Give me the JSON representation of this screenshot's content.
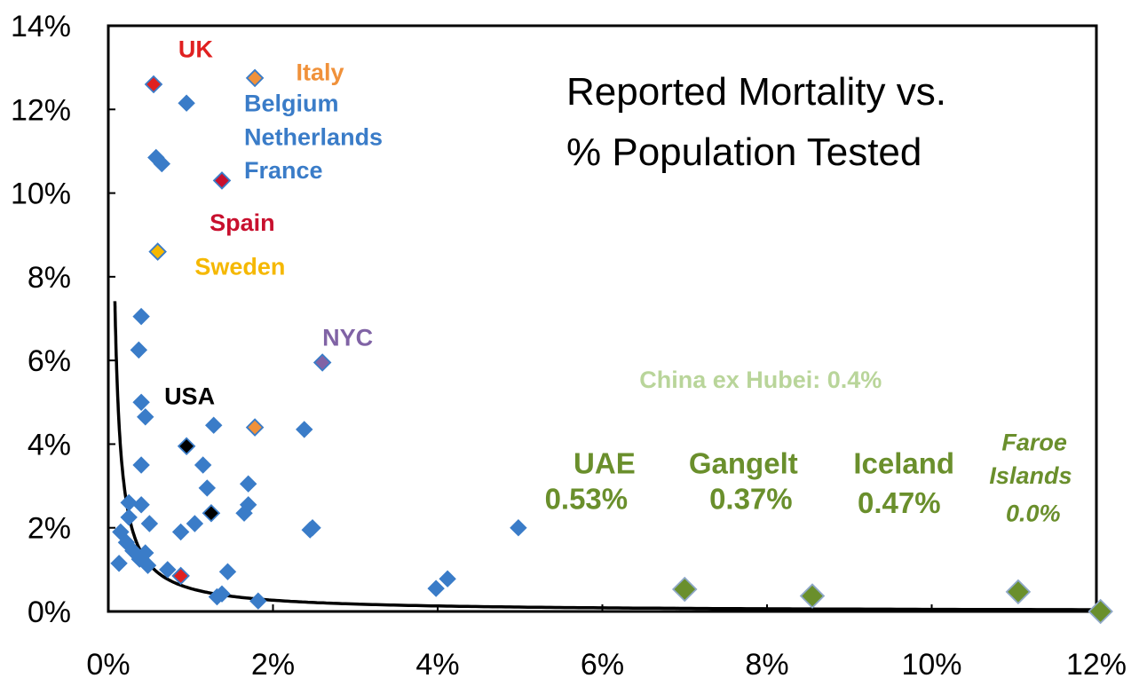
{
  "chart_data": {
    "type": "scatter",
    "title": [
      "Reported Mortality vs.",
      "% Population Tested"
    ],
    "xlim": [
      0,
      12
    ],
    "ylim": [
      0,
      14
    ],
    "x_ticks": [
      0,
      2,
      4,
      6,
      8,
      10,
      12
    ],
    "y_ticks": [
      0,
      2,
      4,
      6,
      8,
      10,
      12,
      14
    ],
    "x_tick_labels": [
      "0%",
      "2%",
      "4%",
      "6%",
      "8%",
      "10%",
      "12%"
    ],
    "y_tick_labels": [
      "0%",
      "2%",
      "4%",
      "6%",
      "8%",
      "10%",
      "12%",
      "14%"
    ],
    "colors": {
      "default": "#3a7cc8",
      "uk": "#e02020",
      "italy": "#f0913a",
      "belgium": "#3a7cc8",
      "spain": "#c8102e",
      "sweden": "#f5b800",
      "nyc": "#8063a5",
      "usa": "#000000",
      "green": "#6a8f2c",
      "china": "#b9d59a"
    },
    "points": [
      {
        "x": 0.55,
        "y": 12.6,
        "group": "uk"
      },
      {
        "x": 0.88,
        "y": 0.85,
        "group": "uk"
      },
      {
        "x": 1.78,
        "y": 12.75,
        "group": "italy"
      },
      {
        "x": 1.78,
        "y": 4.4,
        "group": "italy"
      },
      {
        "x": 0.95,
        "y": 12.15,
        "group": "default"
      },
      {
        "x": 0.58,
        "y": 10.85,
        "group": "default"
      },
      {
        "x": 0.65,
        "y": 10.7,
        "group": "default"
      },
      {
        "x": 1.38,
        "y": 10.3,
        "group": "spain"
      },
      {
        "x": 0.6,
        "y": 8.6,
        "group": "sweden"
      },
      {
        "x": 2.6,
        "y": 5.95,
        "group": "nyc"
      },
      {
        "x": 0.95,
        "y": 3.95,
        "group": "usa"
      },
      {
        "x": 1.25,
        "y": 2.35,
        "group": "usa"
      },
      {
        "x": 0.4,
        "y": 7.05,
        "group": "default"
      },
      {
        "x": 0.37,
        "y": 6.25,
        "group": "default"
      },
      {
        "x": 0.4,
        "y": 5.0,
        "group": "default"
      },
      {
        "x": 0.45,
        "y": 4.65,
        "group": "default"
      },
      {
        "x": 0.4,
        "y": 3.5,
        "group": "default"
      },
      {
        "x": 0.25,
        "y": 2.6,
        "group": "default"
      },
      {
        "x": 0.4,
        "y": 2.55,
        "group": "default"
      },
      {
        "x": 0.25,
        "y": 2.25,
        "group": "default"
      },
      {
        "x": 0.5,
        "y": 2.1,
        "group": "default"
      },
      {
        "x": 0.15,
        "y": 1.9,
        "group": "default"
      },
      {
        "x": 0.22,
        "y": 1.65,
        "group": "default"
      },
      {
        "x": 0.3,
        "y": 1.45,
        "group": "default"
      },
      {
        "x": 0.45,
        "y": 1.4,
        "group": "default"
      },
      {
        "x": 0.38,
        "y": 1.25,
        "group": "default"
      },
      {
        "x": 0.13,
        "y": 1.15,
        "group": "default"
      },
      {
        "x": 0.48,
        "y": 1.1,
        "group": "default"
      },
      {
        "x": 0.72,
        "y": 1.0,
        "group": "default"
      },
      {
        "x": 0.88,
        "y": 1.9,
        "group": "default"
      },
      {
        "x": 1.05,
        "y": 2.1,
        "group": "default"
      },
      {
        "x": 1.15,
        "y": 3.5,
        "group": "default"
      },
      {
        "x": 1.2,
        "y": 2.95,
        "group": "default"
      },
      {
        "x": 1.28,
        "y": 4.45,
        "group": "default"
      },
      {
        "x": 1.7,
        "y": 3.05,
        "group": "default"
      },
      {
        "x": 1.7,
        "y": 2.55,
        "group": "default"
      },
      {
        "x": 1.65,
        "y": 2.35,
        "group": "default"
      },
      {
        "x": 1.45,
        "y": 0.95,
        "group": "default"
      },
      {
        "x": 1.32,
        "y": 0.35,
        "group": "default"
      },
      {
        "x": 1.38,
        "y": 0.42,
        "group": "default"
      },
      {
        "x": 1.82,
        "y": 0.25,
        "group": "default"
      },
      {
        "x": 2.38,
        "y": 4.35,
        "group": "default"
      },
      {
        "x": 2.48,
        "y": 2.0,
        "group": "default"
      },
      {
        "x": 2.45,
        "y": 1.95,
        "group": "default"
      },
      {
        "x": 3.98,
        "y": 0.55,
        "group": "default"
      },
      {
        "x": 4.12,
        "y": 0.78,
        "group": "default"
      },
      {
        "x": 4.98,
        "y": 2.0,
        "group": "default"
      },
      {
        "x": 7.0,
        "y": 0.53,
        "group": "green",
        "size": "large"
      },
      {
        "x": 8.55,
        "y": 0.37,
        "group": "green",
        "size": "large"
      },
      {
        "x": 11.05,
        "y": 0.47,
        "group": "green",
        "size": "large"
      },
      {
        "x": 12.05,
        "y": 0.0,
        "group": "green",
        "size": "large"
      }
    ],
    "trend_line": {
      "type": "power",
      "a": 0.55,
      "b": -1.03,
      "x_from": 0.08,
      "x_to": 12.05
    },
    "labels": [
      {
        "text": "UK",
        "x": 0.85,
        "y": 13.25,
        "group": "uk",
        "style": "lbl"
      },
      {
        "text": "Italy",
        "x": 2.28,
        "y": 12.7,
        "group": "italy",
        "style": "lbl"
      },
      {
        "text": "Belgium",
        "x": 1.65,
        "y": 11.95,
        "group": "belgium",
        "style": "lbl"
      },
      {
        "text": "Netherlands",
        "x": 1.65,
        "y": 11.15,
        "group": "belgium",
        "style": "lbl"
      },
      {
        "text": "France",
        "x": 1.65,
        "y": 10.35,
        "group": "belgium",
        "style": "lbl"
      },
      {
        "text": "Spain",
        "x": 1.23,
        "y": 9.1,
        "group": "spain",
        "style": "lbl"
      },
      {
        "text": "Sweden",
        "x": 1.05,
        "y": 8.05,
        "group": "sweden",
        "style": "lbl"
      },
      {
        "text": "NYC",
        "x": 2.6,
        "y": 6.35,
        "group": "nyc",
        "style": "lbl"
      },
      {
        "text": "USA",
        "x": 0.68,
        "y": 4.95,
        "group": "usa",
        "style": "lbl"
      },
      {
        "text": "China ex Hubei: 0.4%",
        "x": 6.45,
        "y": 5.35,
        "group": "china",
        "style": "lbl"
      },
      {
        "text": "UAE",
        "x": 5.65,
        "y": 3.3,
        "group": "green",
        "style": "big"
      },
      {
        "text": "0.53%",
        "x": 5.3,
        "y": 2.45,
        "group": "green",
        "style": "big"
      },
      {
        "text": "Gangelt",
        "x": 7.05,
        "y": 3.3,
        "group": "green",
        "style": "big"
      },
      {
        "text": "0.37%",
        "x": 7.3,
        "y": 2.45,
        "group": "green",
        "style": "big"
      },
      {
        "text": "Iceland",
        "x": 9.05,
        "y": 3.3,
        "group": "green",
        "style": "big"
      },
      {
        "text": "0.47%",
        "x": 9.1,
        "y": 2.35,
        "group": "green",
        "style": "big"
      },
      {
        "text": "Faroe",
        "x": 10.85,
        "y": 3.85,
        "group": "green",
        "style": "ital"
      },
      {
        "text": "Islands",
        "x": 10.7,
        "y": 3.05,
        "group": "green",
        "style": "ital"
      },
      {
        "text": "0.0%",
        "x": 10.9,
        "y": 2.15,
        "group": "green",
        "style": "ital"
      }
    ]
  }
}
